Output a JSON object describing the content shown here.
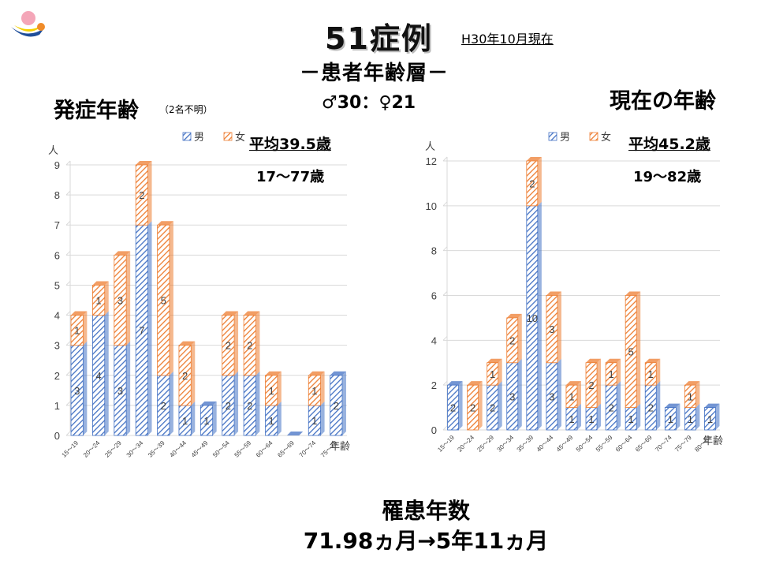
{
  "header": {
    "title": "51症例",
    "as_of": "H30年10月現在",
    "subtitle": "－患者年齢層－",
    "sex_ratio": "♂30：♀21"
  },
  "left_chart": {
    "heading": "発症年齢",
    "note": "（2名不明）",
    "average": "平均39.5歳",
    "range": "17～77歳"
  },
  "right_chart": {
    "heading": "現在の年齢",
    "average": "平均45.2歳",
    "range": "19～82歳"
  },
  "footer": {
    "title": "罹患年数",
    "value": "71.98ヵ月→5年11ヵ月"
  },
  "colors": {
    "male": "#4472C4",
    "female": "#ED7D31"
  },
  "chart_data": [
    {
      "type": "bar",
      "stacked": true,
      "ylabel": "人",
      "xlabel": "年齢",
      "ylim": [
        0,
        9
      ],
      "yticks": [
        0,
        1,
        2,
        3,
        4,
        5,
        6,
        7,
        8,
        9
      ],
      "legend": [
        "男",
        "女"
      ],
      "legend_position": "top",
      "categories": [
        "15～19",
        "20～24",
        "25～29",
        "30～34",
        "35～39",
        "40～44",
        "45～49",
        "50～54",
        "55～59",
        "60～64",
        "65～69",
        "70～74",
        "75～79"
      ],
      "series": [
        {
          "name": "男",
          "values": [
            3,
            4,
            3,
            7,
            2,
            1,
            1,
            2,
            2,
            1,
            0,
            1,
            2
          ]
        },
        {
          "name": "女",
          "values": [
            1,
            1,
            3,
            2,
            5,
            2,
            0,
            2,
            2,
            1,
            0,
            1,
            0
          ]
        }
      ]
    },
    {
      "type": "bar",
      "stacked": true,
      "ylabel": "人",
      "xlabel": "年齢",
      "ylim": [
        0,
        12
      ],
      "yticks": [
        0,
        2,
        4,
        6,
        8,
        10,
        12
      ],
      "legend": [
        "男",
        "女"
      ],
      "legend_position": "top",
      "categories": [
        "15～19",
        "20～24",
        "25～29",
        "30～34",
        "35～39",
        "40～44",
        "45～49",
        "50～54",
        "55～59",
        "60～64",
        "65～69",
        "70～74",
        "75～79",
        "80～84"
      ],
      "series": [
        {
          "name": "男",
          "values": [
            2,
            0,
            2,
            3,
            10,
            3,
            1,
            1,
            2,
            1,
            2,
            1,
            1,
            1
          ]
        },
        {
          "name": "女",
          "values": [
            0,
            2,
            1,
            2,
            2,
            3,
            1,
            2,
            1,
            5,
            1,
            0,
            1,
            0
          ]
        }
      ]
    }
  ]
}
